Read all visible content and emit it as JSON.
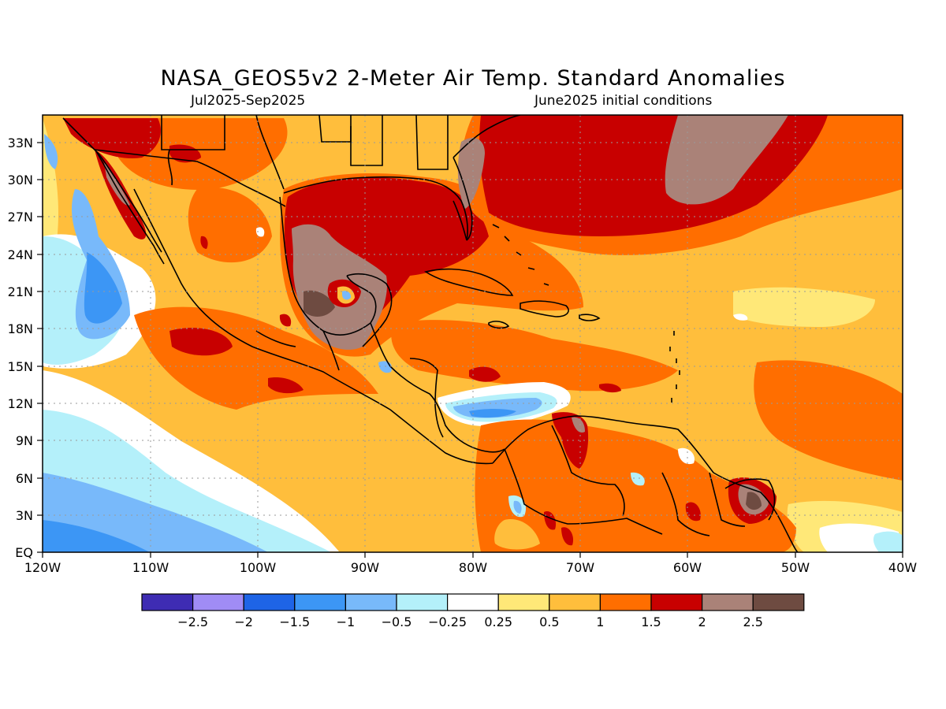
{
  "title": "NASA_GEOS5v2 2-Meter Air Temp. Standard Anomalies",
  "period": "Jul2025-Sep2025",
  "initial_conditions": "June2025 initial conditions",
  "lat_labels": [
    "EQ",
    "3N",
    "6N",
    "9N",
    "12N",
    "15N",
    "18N",
    "21N",
    "24N",
    "27N",
    "30N",
    "33N"
  ],
  "lon_labels": [
    "120W",
    "110W",
    "100W",
    "90W",
    "80W",
    "70W",
    "60W",
    "50W",
    "40W"
  ],
  "colorbar": {
    "colors": [
      "#3e2cb3",
      "#a08cf5",
      "#1e64e6",
      "#3c96f5",
      "#78b9fa",
      "#b4f0fa",
      "#ffffff",
      "#ffe878",
      "#ffbe3c",
      "#ff6e00",
      "#c80000",
      "#aa8278",
      "#6e4b41"
    ],
    "tick_labels": [
      "-2.5",
      "-2",
      "-1.5",
      "-1",
      "-0.5",
      "-0.25",
      "0.25",
      "0.5",
      "1",
      "1.5",
      "2",
      "2.5"
    ]
  }
}
